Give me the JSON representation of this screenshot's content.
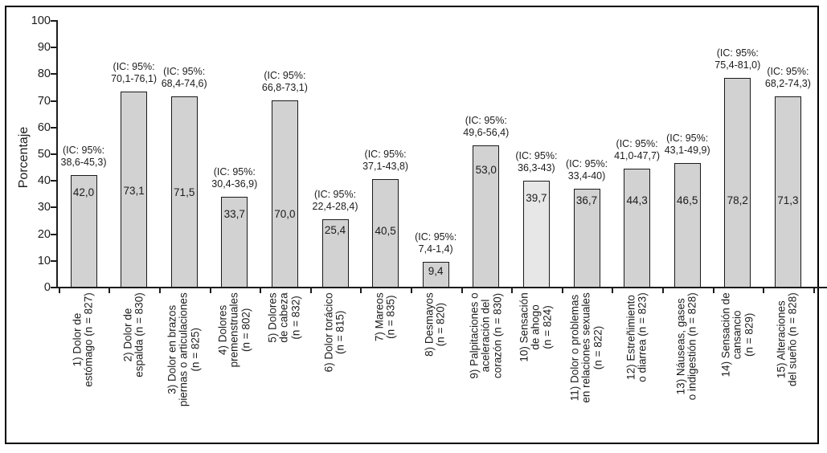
{
  "colors": {
    "background": "#ffffff",
    "bar_fill": "#d2d2d2",
    "bar_fill_light": "#e7e7e7",
    "bar_border": "#1a1a1a",
    "axis": "#1c1c1c",
    "text": "#1c1c1c"
  },
  "chart_data": {
    "type": "bar",
    "title": "",
    "xlabel": "",
    "ylabel": "Porcentaje",
    "ylim": [
      0,
      100
    ],
    "yticks": [
      0,
      10,
      20,
      30,
      40,
      50,
      60,
      70,
      80,
      90,
      100
    ],
    "grid": false,
    "legend": null,
    "categories": [
      "1) Dolor de estómago (n = 827)",
      "2) Dolor de espalda (n = 830)",
      "3) Dolor en brazos piernas o articulaciones (n = 825)",
      "4) Dolores premenstruales (n = 802)",
      "5) Dolores de cabeza (n = 832)",
      "6) Dolor torácico (n = 815)",
      "7) Mareos (n = 835)",
      "8) Desmayos (n = 820)",
      "9) Palpitaciones o aceleración del corazón (n = 830)",
      "10) Sensación de ahogo (n = 824)",
      "11) Dolor o problemas en relaciones sexuales (n = 822)",
      "12) Estreñimiento o diarrea (n = 823)",
      "13) Náuseas, gases o indigestión (n = 828)",
      "14) Sensación de cansancio (n = 829)",
      "15) Alteraciones del sueño (n = 828)"
    ],
    "values": [
      42.0,
      73.1,
      71.5,
      33.7,
      70.0,
      25.4,
      40.5,
      9.4,
      53.0,
      39.7,
      36.7,
      44.3,
      46.5,
      78.2,
      71.3
    ],
    "bars": [
      {
        "label_lines": [
          "1) Dolor de",
          "estómago (n = 827)"
        ],
        "value": 42.0,
        "value_label": "42,0",
        "ci_lines": [
          "(IC: 95%:",
          "38,6-45,3)"
        ],
        "highlight": false
      },
      {
        "label_lines": [
          "2) Dolor de",
          "espalda (n = 830)"
        ],
        "value": 73.1,
        "value_label": "73,1",
        "ci_lines": [
          "(IC: 95%:",
          "70,1-76,1)"
        ],
        "highlight": false
      },
      {
        "label_lines": [
          "3) Dolor en brazos",
          "piernas o articulaciones",
          "(n = 825)"
        ],
        "value": 71.5,
        "value_label": "71,5",
        "ci_lines": [
          "(IC: 95%:",
          "68,4-74,6)"
        ],
        "highlight": false
      },
      {
        "label_lines": [
          "4) Dolores",
          "premenstruales",
          "(n = 802)"
        ],
        "value": 33.7,
        "value_label": "33,7",
        "ci_lines": [
          "(IC: 95%:",
          "30,4-36,9)"
        ],
        "highlight": false
      },
      {
        "label_lines": [
          "5) Dolores",
          "de cabeza",
          "(n = 832)"
        ],
        "value": 70.0,
        "value_label": "70,0",
        "ci_lines": [
          "(IC: 95%:",
          "66,8-73,1)"
        ],
        "highlight": false
      },
      {
        "label_lines": [
          "6) Dolor torácico",
          "(n = 815)"
        ],
        "value": 25.4,
        "value_label": "25,4",
        "ci_lines": [
          "(IC: 95%:",
          "22,4-28,4)"
        ],
        "highlight": false
      },
      {
        "label_lines": [
          "7) Mareos",
          "(n = 835)"
        ],
        "value": 40.5,
        "value_label": "40,5",
        "ci_lines": [
          "(IC: 95%:",
          "37,1-43,8)"
        ],
        "highlight": false
      },
      {
        "label_lines": [
          "8) Desmayos",
          "(n = 820)"
        ],
        "value": 9.4,
        "value_label": "9,4",
        "ci_lines": [
          "(IC: 95%:",
          "7,4-1,4)"
        ],
        "highlight": false
      },
      {
        "label_lines": [
          "9) Palpitaciones o",
          "aceleración del",
          "corazón (n = 830)"
        ],
        "value": 53.0,
        "value_label": "53,0",
        "ci_lines": [
          "(IC: 95%:",
          "49,6-56,4)"
        ],
        "highlight": false
      },
      {
        "label_lines": [
          "10) Sensación",
          "de ahogo",
          "(n = 824)"
        ],
        "value": 39.7,
        "value_label": "39,7",
        "ci_lines": [
          "(IC: 95%:",
          "36,3-43)"
        ],
        "highlight": true
      },
      {
        "label_lines": [
          "11) Dolor o problemas",
          "en relaciones sexuales",
          "(n = 822)"
        ],
        "value": 36.7,
        "value_label": "36,7",
        "ci_lines": [
          "(IC: 95%:",
          "33,4-40)"
        ],
        "highlight": false
      },
      {
        "label_lines": [
          "12) Estreñimiento",
          "o diarrea (n = 823)"
        ],
        "value": 44.3,
        "value_label": "44,3",
        "ci_lines": [
          "(IC: 95%:",
          "41,0-47,7)"
        ],
        "highlight": false
      },
      {
        "label_lines": [
          "13) Náuseas, gases",
          "o indigestión (n = 828)"
        ],
        "value": 46.5,
        "value_label": "46,5",
        "ci_lines": [
          "(IC: 95%:",
          "43,1-49,9)"
        ],
        "highlight": false
      },
      {
        "label_lines": [
          "14) Sensación de",
          "cansancio",
          "(n = 829)"
        ],
        "value": 78.2,
        "value_label": "78,2",
        "ci_lines": [
          "(IC: 95%:",
          "75,4-81,0)"
        ],
        "highlight": false
      },
      {
        "label_lines": [
          "15) Alteraciones",
          "del sueño (n = 828)"
        ],
        "value": 71.3,
        "value_label": "71,3",
        "ci_lines": [
          "(IC: 95%:",
          "68,2-74,3)"
        ],
        "highlight": false
      }
    ]
  }
}
